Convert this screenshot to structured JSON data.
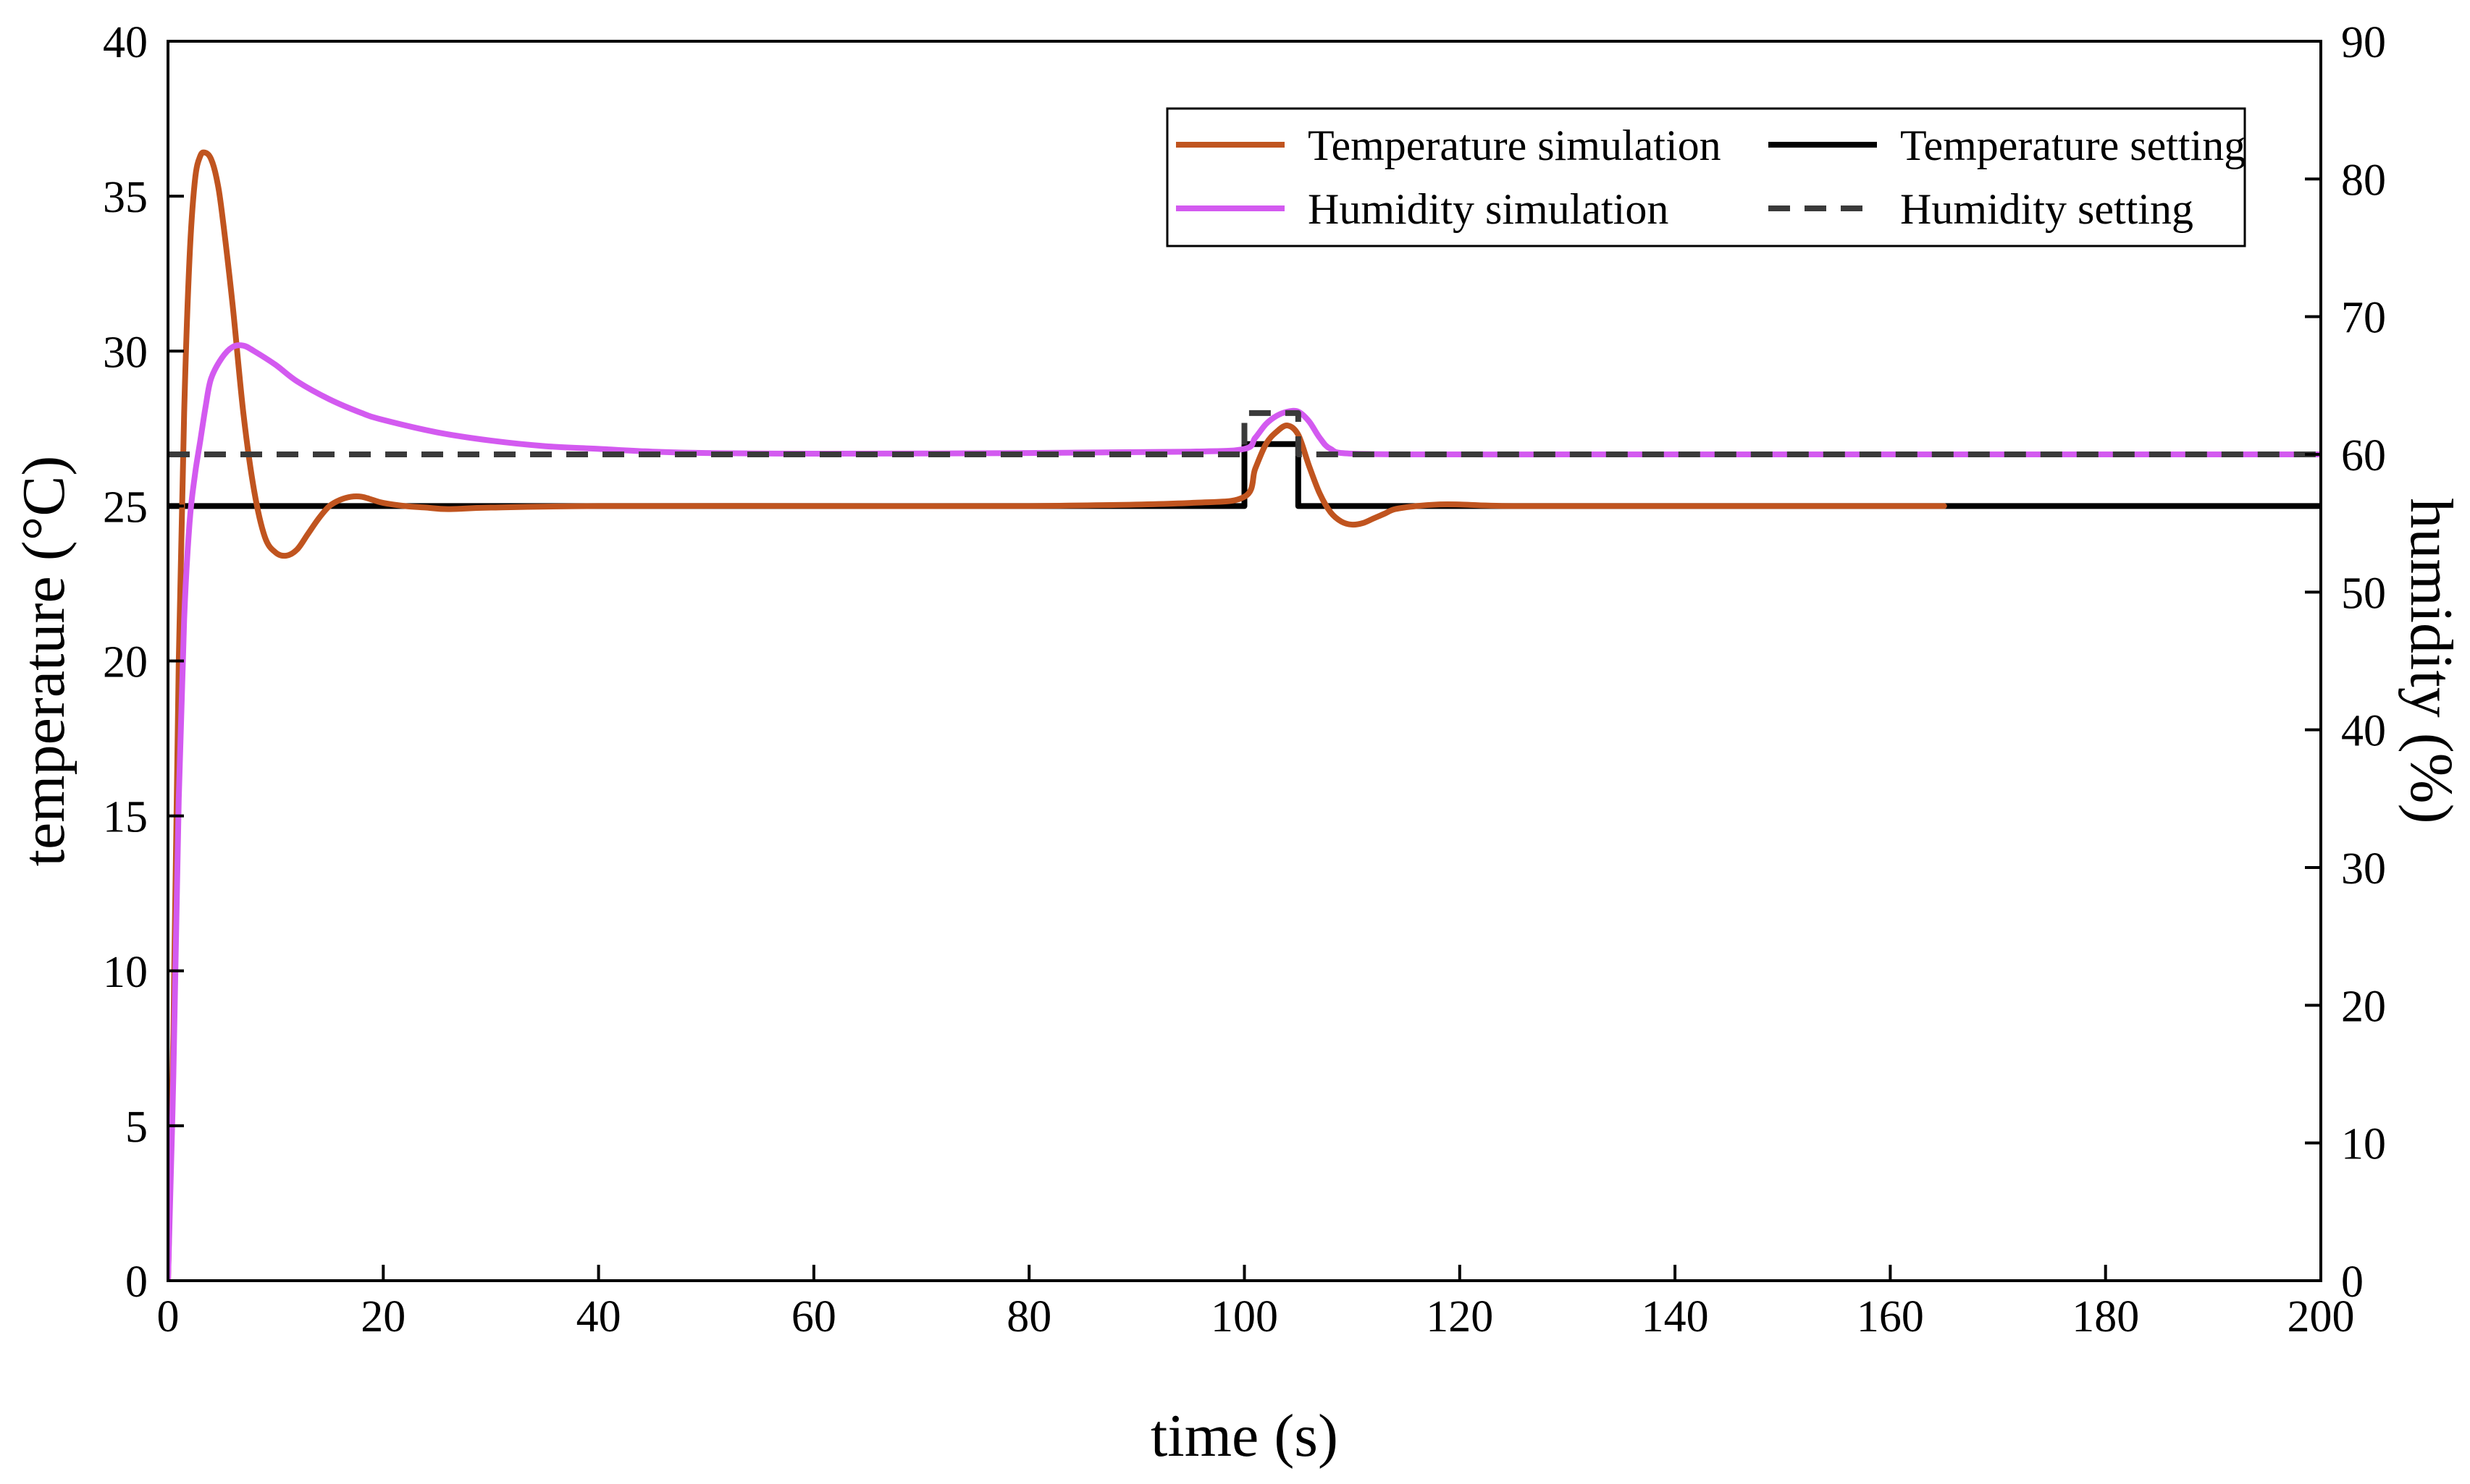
{
  "chart_data": {
    "type": "line",
    "xlabel": "time (s)",
    "ylabel_left": "temperature (°C)",
    "ylabel_right": "humidity (%)",
    "xlim": [
      0,
      200
    ],
    "ylim_left": [
      0,
      40
    ],
    "ylim_right": [
      0,
      90
    ],
    "x_ticks": [
      0,
      20,
      40,
      60,
      80,
      100,
      120,
      140,
      160,
      180,
      200
    ],
    "y_ticks_left": [
      0,
      5,
      10,
      15,
      20,
      25,
      30,
      35,
      40
    ],
    "y_ticks_right": [
      0,
      10,
      20,
      30,
      40,
      50,
      60,
      70,
      80,
      90
    ],
    "grid": false,
    "legend_position": "top-right",
    "series": [
      {
        "name": "Temperature simulation",
        "axis": "left",
        "color": "#C0541F",
        "style": "solid",
        "x": [
          0,
          0.5,
          1,
          1.5,
          2,
          2.5,
          3,
          3.5,
          4,
          4.5,
          5,
          6,
          7,
          8,
          9,
          10,
          11,
          12,
          13,
          14,
          15,
          16,
          17,
          18,
          19,
          20,
          22,
          24,
          26,
          30,
          40,
          60,
          80,
          95,
          100,
          101,
          102,
          103,
          104,
          105,
          106,
          107,
          108,
          109,
          110,
          111,
          112,
          113,
          114,
          116,
          118,
          120,
          125,
          140,
          165
        ],
        "y": [
          0,
          8,
          20,
          28,
          33,
          35.5,
          36.3,
          36.4,
          36.2,
          35.6,
          34.5,
          31.5,
          28,
          25.5,
          24,
          23.5,
          23.4,
          23.6,
          24.1,
          24.6,
          25.0,
          25.2,
          25.3,
          25.3,
          25.2,
          25.1,
          25.0,
          24.95,
          24.9,
          24.95,
          25.0,
          25.0,
          25.0,
          25.1,
          25.3,
          26.2,
          27.0,
          27.4,
          27.6,
          27.3,
          26.3,
          25.4,
          24.8,
          24.5,
          24.4,
          24.45,
          24.6,
          24.75,
          24.9,
          25.0,
          25.05,
          25.05,
          25.0,
          25.0,
          25.0
        ]
      },
      {
        "name": "Temperature setting",
        "axis": "left",
        "color": "#000000",
        "style": "solid",
        "x": [
          0,
          100,
          100,
          105,
          105,
          200
        ],
        "y": [
          25,
          25,
          27,
          27,
          25,
          25
        ]
      },
      {
        "name": "Humidity simulation",
        "axis": "right",
        "color": "#D35AF0",
        "style": "solid",
        "x": [
          0,
          0.5,
          1,
          1.5,
          2,
          2.5,
          3,
          3.5,
          4,
          5,
          6,
          7,
          8,
          10,
          12,
          15,
          18,
          20,
          25,
          30,
          35,
          40,
          45,
          50,
          60,
          80,
          95,
          100,
          101,
          102,
          103,
          104,
          105,
          106,
          107,
          108,
          110,
          120,
          140,
          200
        ],
        "y": [
          0,
          15,
          35,
          48,
          55,
          58.5,
          61,
          63.5,
          65.5,
          67,
          67.8,
          67.9,
          67.5,
          66.5,
          65.3,
          64,
          63,
          62.5,
          61.6,
          61,
          60.6,
          60.4,
          60.2,
          60.1,
          60.05,
          60.1,
          60.2,
          60.4,
          61.2,
          62.2,
          62.8,
          63.1,
          63.1,
          62.4,
          61.2,
          60.4,
          60.05,
          60.0,
          60.0,
          60.0
        ]
      },
      {
        "name": "Humidity setting",
        "axis": "right",
        "color": "#3A3A3A",
        "style": "dashed",
        "x": [
          0,
          100,
          100,
          105,
          105,
          200
        ],
        "y": [
          60,
          60,
          63,
          63,
          60,
          60
        ]
      }
    ]
  }
}
